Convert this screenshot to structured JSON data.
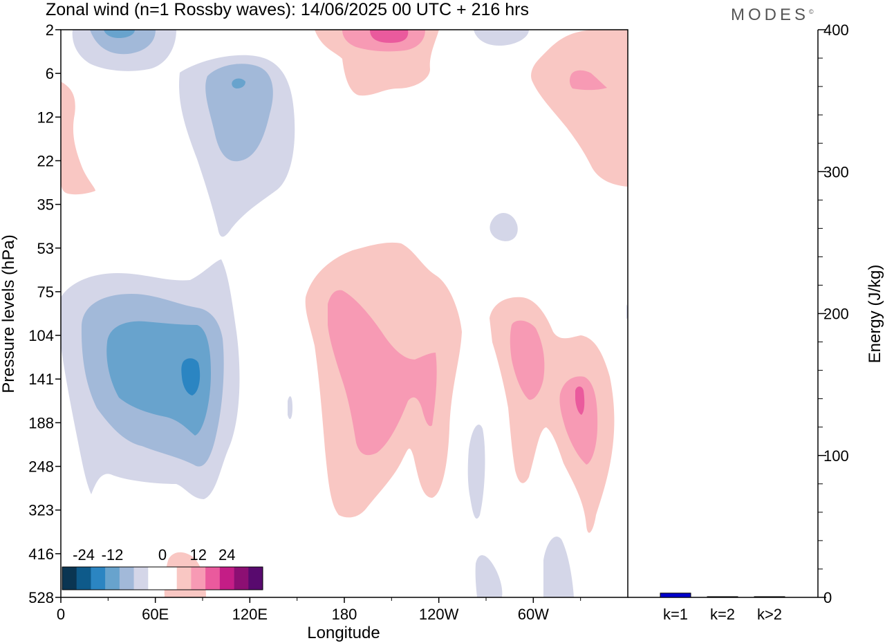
{
  "title": "Zonal wind (n=1 Rossby waves):  14/06/2025  00 UTC  + 216 hrs",
  "brand": "MODES",
  "brand_mark": "©",
  "chart_data": [
    {
      "type": "heatmap",
      "title": "Zonal wind (n=1 Rossby waves):  14/06/2025  00 UTC  + 216 hrs",
      "xlabel": "Longitude",
      "ylabel": "Pressure levels (hPa)",
      "x_ticks": [
        "0",
        "60E",
        "120E",
        "180",
        "120W",
        "60W"
      ],
      "y_ticks": [
        "2",
        "6",
        "12",
        "22",
        "35",
        "53",
        "75",
        "104",
        "141",
        "188",
        "248",
        "323",
        "416",
        "528"
      ],
      "colorbar": {
        "tick_labels": [
          "-24",
          "-12",
          "0",
          "12",
          "24"
        ],
        "levels": [
          -30,
          -24,
          -18,
          -12,
          -6,
          -3,
          0,
          3,
          6,
          12,
          18,
          24,
          30
        ],
        "colors": [
          "#0a3552",
          "#0e5a8a",
          "#2b85c2",
          "#68a3cd",
          "#a2b9d9",
          "#d4d6e8",
          "#ffffff",
          "#ffffff",
          "#f9c7c3",
          "#f79ab4",
          "#ea5a9d",
          "#c41d86",
          "#8c0f73",
          "#580a6e"
        ]
      },
      "features": [
        {
          "sign": "negative",
          "longitude": 35,
          "level": 2,
          "peak": -12
        },
        {
          "sign": "negative",
          "longitude": 112,
          "level": 8,
          "peak": -12
        },
        {
          "sign": "positive",
          "longitude": 200,
          "level": 2,
          "peak": 12
        },
        {
          "sign": "positive",
          "longitude": 325,
          "level": 8,
          "peak": 6
        },
        {
          "sign": "negative",
          "longitude": 45,
          "level": 141,
          "peak": -18
        },
        {
          "sign": "positive",
          "longitude": 195,
          "level": 141,
          "peak": 6
        },
        {
          "sign": "positive",
          "longitude": 325,
          "level": 160,
          "peak": 12
        }
      ]
    },
    {
      "type": "bar",
      "categories": [
        "k=1",
        "k=2",
        "k>2"
      ],
      "values": [
        3,
        0.5,
        0.5
      ],
      "ylabel": "Energy (J/kg)",
      "ylim": [
        0,
        400
      ],
      "y_ticks": [
        "0",
        "100",
        "200",
        "300",
        "400"
      ],
      "bar_color": "#0000cc"
    }
  ]
}
